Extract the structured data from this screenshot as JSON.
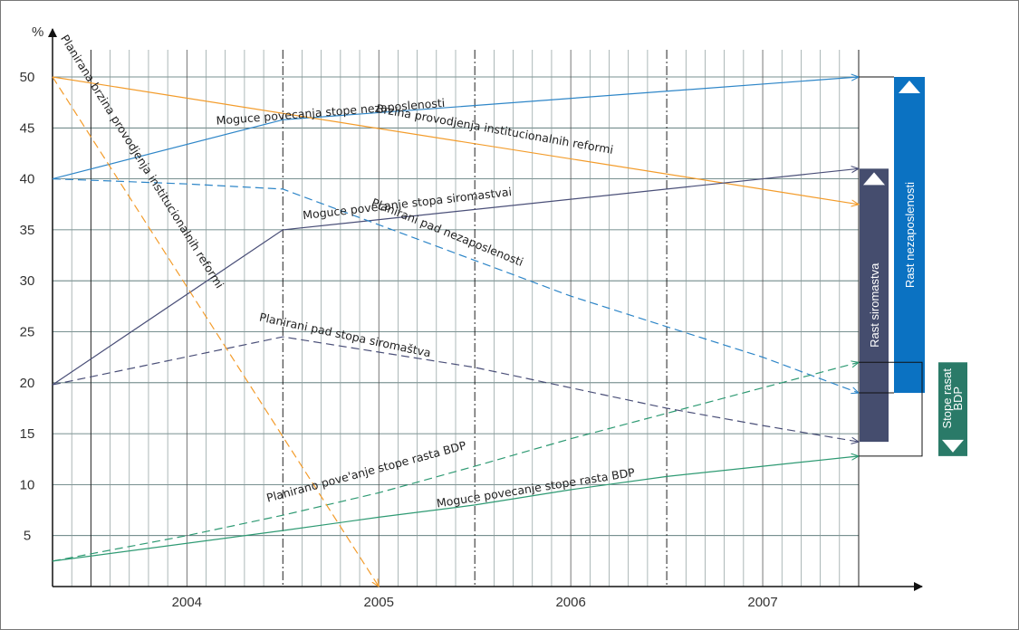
{
  "chart_data": {
    "type": "line",
    "ylabel": "%",
    "ylim": [
      0,
      50
    ],
    "yticks": [
      5,
      10,
      15,
      20,
      25,
      30,
      35,
      40,
      45,
      50
    ],
    "xlim": [
      2003.3,
      2007.5
    ],
    "xticks": [
      {
        "label": "2004",
        "x": 2004
      },
      {
        "label": "2005",
        "x": 2005
      },
      {
        "label": "2006",
        "x": 2006
      },
      {
        "label": "2007",
        "x": 2007
      }
    ],
    "grid": true,
    "colors": {
      "orange": "#f39c2b",
      "blue": "#2e86c8",
      "navy": "#4a4f78",
      "teal": "#2e9a73",
      "box_navy": "#454d6e",
      "box_blue": "#0b72c2",
      "box_teal": "#2a7a68"
    },
    "series": [
      {
        "name": "Moguce povecanja stope nezaposlenosti",
        "color": "#2e86c8",
        "dash": false,
        "arrow": true,
        "x": [
          2003.3,
          2004.5,
          2007.5
        ],
        "y": [
          40,
          45.8,
          50
        ]
      },
      {
        "name": "Brzina provodjenja institucionalnih reformi",
        "color": "#f39c2b",
        "dash": false,
        "arrow": true,
        "x": [
          2003.3,
          2007.5
        ],
        "y": [
          50,
          37.5
        ]
      },
      {
        "name": "Moguce povecanje stopa siromastvai",
        "color": "#4a4f78",
        "dash": false,
        "arrow": true,
        "x": [
          2003.3,
          2004.5,
          2007.5
        ],
        "y": [
          19.8,
          35,
          41
        ]
      },
      {
        "name": "Planirani pad nezaposlenosti",
        "color": "#2e86c8",
        "dash": true,
        "arrow": true,
        "x": [
          2003.3,
          2003.6,
          2004.0,
          2004.5,
          2005.0,
          2005.5,
          2006.0,
          2006.5,
          2007.0,
          2007.5
        ],
        "y": [
          40,
          39.8,
          39.5,
          39,
          35.5,
          32,
          28.5,
          25.5,
          22.5,
          19
        ]
      },
      {
        "name": "Planirani pad stopa siromaštva",
        "color": "#4a4f78",
        "dash": true,
        "arrow": true,
        "x": [
          2003.3,
          2004.5,
          2005.0,
          2005.5,
          2006.0,
          2006.5,
          2007.0,
          2007.5
        ],
        "y": [
          19.8,
          24.5,
          23,
          21.5,
          19.5,
          17.5,
          15.8,
          14.2
        ]
      },
      {
        "name": "Planirano povećanje stope rasta BDP",
        "color": "#2e9a73",
        "dash": true,
        "arrow": true,
        "x": [
          2003.3,
          2004.0,
          2004.5,
          2005.0,
          2005.5,
          2006.0,
          2006.5,
          2007.0,
          2007.5
        ],
        "y": [
          2.5,
          5,
          7,
          9.2,
          11.8,
          14.5,
          17,
          19.5,
          22
        ]
      },
      {
        "name": "Moguce povecanje stope rasta BDP",
        "color": "#2e9a73",
        "dash": false,
        "arrow": true,
        "x": [
          2003.3,
          2004.5,
          2005.0,
          2005.5,
          2006.0,
          2006.5,
          2007.0,
          2007.5
        ],
        "y": [
          2.5,
          5.5,
          6.8,
          8,
          9.5,
          10.8,
          11.8,
          12.8
        ]
      },
      {
        "name": "Planirana brzina provodjenja institucionalnih reformi",
        "color": "#f39c2b",
        "dash": true,
        "arrow": true,
        "x": [
          2003.3,
          2005.0
        ],
        "y": [
          50,
          0
        ]
      }
    ],
    "annotations": [
      {
        "text": "Moguce povecanja stope nezaposlenosti",
        "x": 2004.75,
        "y": 46.2,
        "angle": -4.5
      },
      {
        "text": "Brzina provodjenja institucionalnih reformi",
        "x": 2005.6,
        "y": 44.5,
        "angle": 10
      },
      {
        "text": "Moguce povecanje stopa siromastvai",
        "x": 2005.15,
        "y": 37.2,
        "angle": -6.5
      },
      {
        "text": "Planirani pad nezaposlenosti",
        "x": 2005.35,
        "y": 34.4,
        "angle": 22
      },
      {
        "text": "Planirani pad stopa siromaštva",
        "x": 2004.82,
        "y": 24.3,
        "angle": 12
      },
      {
        "text": "Planirano pove'anje stope rasta BDP",
        "x": 2004.94,
        "y": 10.9,
        "angle": -15
      },
      {
        "text": "Moguce povecanje stope rasta BDP",
        "x": 2005.82,
        "y": 9.3,
        "angle": -9
      },
      {
        "text": "Planirana brzina provodjenja institucionalnih reformi",
        "x": 2003.75,
        "y": 41.5,
        "angle": 58
      }
    ],
    "range_boxes": [
      {
        "label": "Rast siromastva",
        "color": "#454d6e",
        "from": 41,
        "to": 14.2,
        "arrow": "up"
      },
      {
        "label": "Rast nezaposlenosti",
        "color": "#0b72c2",
        "from": 50,
        "to": 19,
        "arrow": "up"
      },
      {
        "label_line1": "Stope rasat",
        "label_line2": "BDP",
        "color": "#2a7a68",
        "from": 22,
        "to": 12.8,
        "arrow": "down"
      }
    ]
  }
}
